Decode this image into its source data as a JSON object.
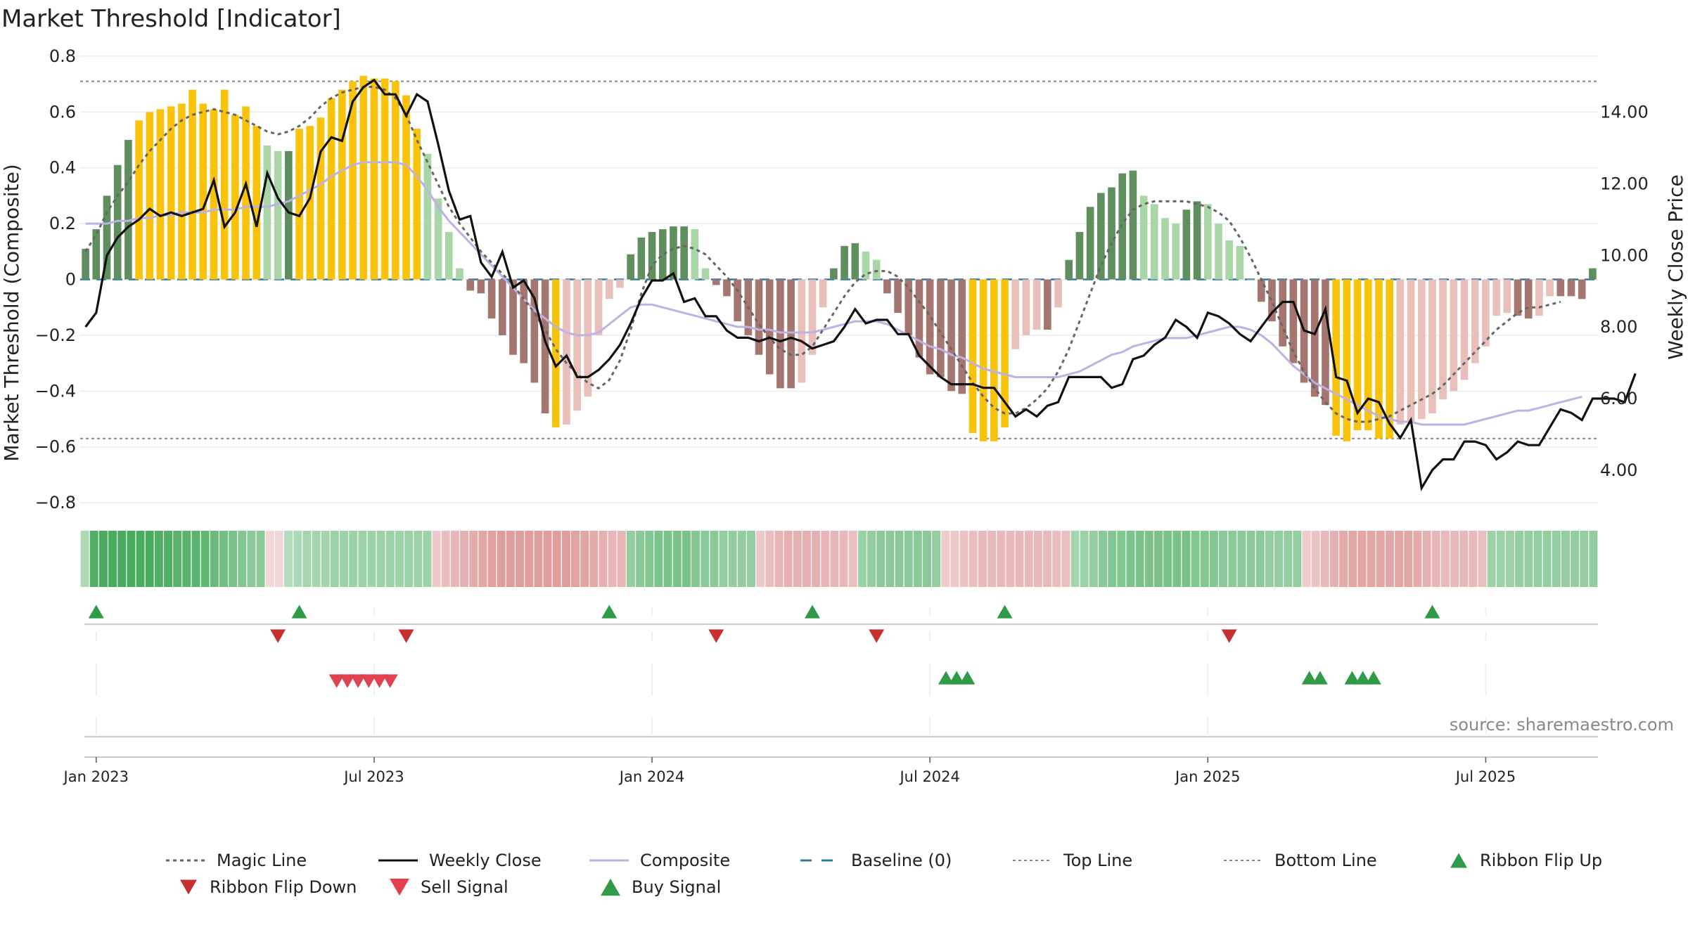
{
  "chart_data": {
    "type": "bar",
    "title": "Market Threshold [Indicator]",
    "ylabel": "Market Threshold (Composite)",
    "y2label": "Weekly Close Price",
    "source": "source: sharemaestro.com",
    "ylim": [
      -0.85,
      0.83
    ],
    "y2lim": [
      2.7,
      15.8
    ],
    "yticks": [
      {
        "v": 0.8,
        "label": "0.8"
      },
      {
        "v": 0.6,
        "label": "0.6"
      },
      {
        "v": 0.4,
        "label": "0.4"
      },
      {
        "v": 0.2,
        "label": "0.2"
      },
      {
        "v": 0,
        "label": "0"
      },
      {
        "v": -0.2,
        "label": "−0.2"
      },
      {
        "v": -0.4,
        "label": "−0.4"
      },
      {
        "v": -0.6,
        "label": "−0.6"
      },
      {
        "v": -0.8,
        "label": "−0.8"
      }
    ],
    "y2ticks": [
      {
        "v": 14,
        "label": "14.00"
      },
      {
        "v": 12,
        "label": "12.00"
      },
      {
        "v": 10,
        "label": "10.00"
      },
      {
        "v": 8,
        "label": "8.00"
      },
      {
        "v": 6,
        "label": "6.00"
      },
      {
        "v": 4,
        "label": "4.00"
      }
    ],
    "xticks": [
      {
        "w": 1,
        "label": "Jan 2023"
      },
      {
        "w": 27,
        "label": "Jul 2023"
      },
      {
        "w": 53,
        "label": "Jan 2024"
      },
      {
        "w": 79,
        "label": "Jul 2024"
      },
      {
        "w": 105,
        "label": "Jan 2025"
      },
      {
        "w": 131,
        "label": "Jul 2025"
      }
    ],
    "top_line": 0.71,
    "bottom_line": -0.57,
    "baseline": 0,
    "composite": [
      0.11,
      0.18,
      0.3,
      0.41,
      0.5,
      0.57,
      0.6,
      0.61,
      0.62,
      0.63,
      0.68,
      0.63,
      0.61,
      0.68,
      0.59,
      0.62,
      0.55,
      0.48,
      0.46,
      0.46,
      0.54,
      0.55,
      0.58,
      0.65,
      0.68,
      0.71,
      0.73,
      0.72,
      0.72,
      0.71,
      0.66,
      0.54,
      0.45,
      0.29,
      0.17,
      0.04,
      -0.04,
      -0.05,
      -0.14,
      -0.2,
      -0.27,
      -0.3,
      -0.37,
      -0.48,
      -0.53,
      -0.52,
      -0.47,
      -0.42,
      -0.2,
      -0.07,
      -0.03,
      0.09,
      0.15,
      0.17,
      0.18,
      0.19,
      0.19,
      0.18,
      0.04,
      -0.02,
      -0.06,
      -0.15,
      -0.2,
      -0.27,
      -0.34,
      -0.39,
      -0.39,
      -0.37,
      -0.27,
      -0.1,
      0.04,
      0.12,
      0.13,
      0.1,
      0.07,
      -0.05,
      -0.12,
      -0.2,
      -0.28,
      -0.34,
      -0.35,
      -0.4,
      -0.41,
      -0.55,
      -0.58,
      -0.58,
      -0.53,
      -0.25,
      -0.2,
      -0.18,
      -0.18,
      -0.1,
      0.07,
      0.17,
      0.26,
      0.31,
      0.33,
      0.38,
      0.39,
      0.3,
      0.27,
      0.22,
      0.2,
      0.25,
      0.28,
      0.27,
      0.2,
      0.14,
      0.12,
      0.0,
      -0.08,
      -0.15,
      -0.24,
      -0.3,
      -0.37,
      -0.42,
      -0.45,
      -0.56,
      -0.58,
      -0.54,
      -0.54,
      -0.57,
      -0.57,
      -0.52,
      -0.51,
      -0.5,
      -0.48,
      -0.43,
      -0.4,
      -0.36,
      -0.3,
      -0.24,
      -0.13,
      -0.12,
      -0.13,
      -0.14,
      -0.13,
      -0.06,
      -0.06,
      -0.06,
      -0.07,
      0.04
    ],
    "magic_line": [
      0.1,
      0.16,
      0.24,
      0.3,
      0.35,
      0.41,
      0.46,
      0.5,
      0.54,
      0.57,
      0.59,
      0.6,
      0.61,
      0.6,
      0.59,
      0.57,
      0.55,
      0.53,
      0.52,
      0.53,
      0.55,
      0.58,
      0.62,
      0.65,
      0.67,
      0.68,
      0.69,
      0.69,
      0.68,
      0.65,
      0.59,
      0.5,
      0.42,
      0.34,
      0.26,
      0.2,
      0.15,
      0.1,
      0.06,
      0.02,
      -0.02,
      -0.07,
      -0.12,
      -0.18,
      -0.25,
      -0.3,
      -0.34,
      -0.37,
      -0.39,
      -0.36,
      -0.29,
      -0.18,
      -0.05,
      0.05,
      0.09,
      0.11,
      0.12,
      0.11,
      0.09,
      0.05,
      0.01,
      -0.04,
      -0.1,
      -0.16,
      -0.21,
      -0.25,
      -0.27,
      -0.27,
      -0.24,
      -0.18,
      -0.12,
      -0.06,
      -0.01,
      0.02,
      0.03,
      0.03,
      0.01,
      -0.03,
      -0.08,
      -0.13,
      -0.19,
      -0.25,
      -0.31,
      -0.37,
      -0.42,
      -0.46,
      -0.48,
      -0.48,
      -0.46,
      -0.43,
      -0.39,
      -0.33,
      -0.25,
      -0.15,
      -0.05,
      0.05,
      0.13,
      0.2,
      0.25,
      0.27,
      0.28,
      0.28,
      0.28,
      0.28,
      0.27,
      0.26,
      0.24,
      0.21,
      0.15,
      0.08,
      0.0,
      -0.08,
      -0.17,
      -0.26,
      -0.33,
      -0.39,
      -0.44,
      -0.48,
      -0.5,
      -0.51,
      -0.51,
      -0.5,
      -0.49,
      -0.47,
      -0.45,
      -0.43,
      -0.41,
      -0.38,
      -0.34,
      -0.3,
      -0.26,
      -0.22,
      -0.18,
      -0.15,
      -0.12,
      -0.1,
      -0.1,
      -0.09,
      -0.08
    ],
    "composite_smooth": [
      0.2,
      0.2,
      0.2,
      0.21,
      0.21,
      0.22,
      0.22,
      0.23,
      0.23,
      0.24,
      0.24,
      0.24,
      0.25,
      0.25,
      0.25,
      0.26,
      0.26,
      0.26,
      0.27,
      0.28,
      0.3,
      0.32,
      0.34,
      0.37,
      0.39,
      0.41,
      0.42,
      0.42,
      0.42,
      0.42,
      0.41,
      0.37,
      0.32,
      0.26,
      0.21,
      0.17,
      0.13,
      0.09,
      0.05,
      0.01,
      -0.03,
      -0.07,
      -0.11,
      -0.14,
      -0.17,
      -0.19,
      -0.2,
      -0.2,
      -0.19,
      -0.16,
      -0.13,
      -0.1,
      -0.09,
      -0.09,
      -0.1,
      -0.11,
      -0.12,
      -0.13,
      -0.14,
      -0.15,
      -0.16,
      -0.17,
      -0.17,
      -0.18,
      -0.18,
      -0.19,
      -0.19,
      -0.19,
      -0.19,
      -0.18,
      -0.17,
      -0.16,
      -0.15,
      -0.15,
      -0.15,
      -0.16,
      -0.18,
      -0.2,
      -0.22,
      -0.24,
      -0.25,
      -0.27,
      -0.28,
      -0.3,
      -0.32,
      -0.33,
      -0.34,
      -0.35,
      -0.35,
      -0.35,
      -0.35,
      -0.35,
      -0.34,
      -0.33,
      -0.31,
      -0.29,
      -0.27,
      -0.26,
      -0.24,
      -0.23,
      -0.22,
      -0.21,
      -0.21,
      -0.21,
      -0.2,
      -0.19,
      -0.18,
      -0.17,
      -0.17,
      -0.18,
      -0.2,
      -0.23,
      -0.27,
      -0.31,
      -0.34,
      -0.37,
      -0.39,
      -0.41,
      -0.43,
      -0.45,
      -0.47,
      -0.49,
      -0.5,
      -0.51,
      -0.51,
      -0.52,
      -0.52,
      -0.52,
      -0.52,
      -0.52,
      -0.51,
      -0.5,
      -0.49,
      -0.48,
      -0.47,
      -0.47,
      -0.46,
      -0.45,
      -0.44,
      -0.43,
      -0.42
    ],
    "weekly_close": [
      8.0,
      8.4,
      10.0,
      10.5,
      10.8,
      11.0,
      11.3,
      11.1,
      11.2,
      11.1,
      11.2,
      11.3,
      12.1,
      10.8,
      11.2,
      12.0,
      10.8,
      12.3,
      11.6,
      11.2,
      11.1,
      11.6,
      12.9,
      13.3,
      13.2,
      14.3,
      14.7,
      14.9,
      14.5,
      14.5,
      13.9,
      14.5,
      14.3,
      13.1,
      11.8,
      11.0,
      11.1,
      9.8,
      9.4,
      10.1,
      9.1,
      9.3,
      8.8,
      7.6,
      6.9,
      7.2,
      6.6,
      6.6,
      6.8,
      7.1,
      7.5,
      8.1,
      8.8,
      9.3,
      9.3,
      9.5,
      8.7,
      8.8,
      8.3,
      8.3,
      7.9,
      7.7,
      7.7,
      7.6,
      7.7,
      7.6,
      7.7,
      7.6,
      7.4,
      7.5,
      7.6,
      8.0,
      8.5,
      8.1,
      8.2,
      8.2,
      7.8,
      7.8,
      7.2,
      6.9,
      6.6,
      6.4,
      6.4,
      6.4,
      6.3,
      6.3,
      5.9,
      5.5,
      5.7,
      5.5,
      5.8,
      5.9,
      6.6,
      6.6,
      6.6,
      6.6,
      6.3,
      6.4,
      7.1,
      7.2,
      7.5,
      7.7,
      8.2,
      8.0,
      7.7,
      8.4,
      8.3,
      8.1,
      7.8,
      7.6,
      8.0,
      8.4,
      8.7,
      8.7,
      7.9,
      7.8,
      8.5,
      6.6,
      6.5,
      5.6,
      6.0,
      5.9,
      5.3,
      4.9,
      5.4,
      3.5,
      4.0,
      4.3,
      4.3,
      4.8,
      4.8,
      4.7,
      4.3,
      4.5,
      4.8,
      4.7,
      4.7,
      5.2,
      5.7,
      5.6,
      5.4,
      6.0,
      6.0,
      6.0,
      5.9,
      6.7
    ],
    "bar_colors": {
      "strong_green": "#5f8f5f",
      "light_green": "#a9d6a6",
      "strong_red": "#a5756f",
      "light_red": "#e9bfba",
      "extreme": "#f8c30a"
    },
    "ribbon": [
      0.35,
      0.9,
      0.95,
      0.95,
      0.95,
      0.95,
      0.95,
      0.95,
      0.9,
      0.9,
      0.85,
      0.85,
      0.85,
      0.8,
      0.75,
      0.7,
      0.65,
      0.6,
      0.55,
      0.55,
      -0.2,
      -0.2,
      0.3,
      0.35,
      0.4,
      0.4,
      0.4,
      0.45,
      0.45,
      0.45,
      0.45,
      0.45,
      0.45,
      0.45,
      0.45,
      0.45,
      0.45,
      0.45,
      -0.35,
      -0.45,
      -0.55,
      -0.6,
      -0.65,
      -0.7,
      -0.75,
      -0.8,
      -0.8,
      -0.8,
      -0.8,
      -0.8,
      -0.8,
      -0.8,
      -0.8,
      -0.75,
      -0.7,
      -0.65,
      -0.6,
      -0.55,
      -0.55,
      0.5,
      0.55,
      0.6,
      0.65,
      0.65,
      0.65,
      0.65,
      0.6,
      0.55,
      0.55,
      0.5,
      0.5,
      0.5,
      0.5,
      -0.35,
      -0.45,
      -0.55,
      -0.6,
      -0.6,
      -0.6,
      -0.6,
      -0.55,
      -0.55,
      -0.5,
      -0.45,
      0.45,
      0.5,
      0.55,
      0.55,
      0.55,
      0.55,
      0.55,
      0.55,
      0.5,
      -0.3,
      -0.35,
      -0.4,
      -0.45,
      -0.5,
      -0.5,
      -0.5,
      -0.5,
      -0.5,
      -0.5,
      -0.5,
      -0.5,
      -0.45,
      -0.45,
      0.4,
      0.45,
      0.5,
      0.55,
      0.6,
      0.6,
      0.65,
      0.65,
      0.65,
      0.65,
      0.65,
      0.65,
      0.65,
      0.6,
      0.6,
      0.6,
      0.55,
      0.55,
      0.55,
      0.55,
      0.55,
      0.5,
      0.5,
      0.5,
      0.5,
      -0.3,
      -0.4,
      -0.5,
      -0.6,
      -0.65,
      -0.7,
      -0.7,
      -0.7,
      -0.7,
      -0.7,
      -0.7,
      -0.7,
      -0.65,
      -0.6,
      -0.55,
      -0.5,
      -0.5,
      -0.5,
      -0.5,
      -0.45,
      0.45,
      0.45,
      0.45,
      0.5,
      0.5,
      0.5,
      0.5,
      0.5,
      0.5,
      0.5,
      0.5,
      0.5
    ],
    "ribbon_flip_up": [
      1,
      20,
      49,
      68,
      86,
      126
    ],
    "ribbon_flip_down": [
      18,
      30,
      59,
      74,
      107
    ],
    "sell_signal": [
      23.5,
      24.5,
      25.5,
      26.5,
      27.5,
      28.5
    ],
    "buy_signal": [
      80.5,
      81.5,
      82.5,
      114.5,
      115.5,
      118.5,
      119.5,
      120.5
    ],
    "legend": [
      {
        "key": "magic",
        "label": "Magic Line",
        "color": "#666666"
      },
      {
        "key": "close",
        "label": "Weekly Close",
        "color": "#111111"
      },
      {
        "key": "comp",
        "label": "Composite",
        "color": "#bdb2e3"
      },
      {
        "key": "base",
        "label": "Baseline (0)",
        "color": "#2f78a7"
      },
      {
        "key": "top",
        "label": "Top Line",
        "color": "#8a8a8a"
      },
      {
        "key": "bottom",
        "label": "Bottom Line",
        "color": "#8a8a8a"
      },
      {
        "key": "flipup",
        "label": "Ribbon Flip Up",
        "color": "#2f9a48"
      },
      {
        "key": "flipdown",
        "label": "Ribbon Flip Down",
        "color": "#c8302f"
      },
      {
        "key": "sell",
        "label": "Sell Signal",
        "color": "#e0434f"
      },
      {
        "key": "buy",
        "label": "Buy Signal",
        "color": "#2f9a48"
      }
    ]
  }
}
